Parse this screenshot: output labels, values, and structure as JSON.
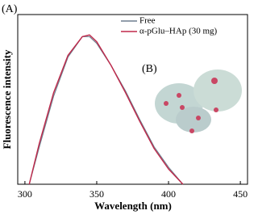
{
  "chart_data": {
    "type": "line",
    "annotations": [
      "(A)",
      "(B)"
    ],
    "x_label": "Wavelength (nm)",
    "y_label": "Fluorescence intensity",
    "x": [
      303,
      310,
      320,
      330,
      340,
      345,
      350,
      360,
      370,
      380,
      390,
      400,
      410
    ],
    "series": [
      {
        "name": "Free",
        "color": "#6f7f8f",
        "values": [
          0,
          22,
          52,
          75,
          87,
          87,
          83,
          70,
          55,
          38,
          22,
          10,
          0
        ]
      },
      {
        "name": "α-pGlu–HAp (30 mg)",
        "color": "#c0284a",
        "values": [
          0,
          24,
          54,
          76,
          87,
          88,
          84,
          70,
          54,
          37,
          21,
          9,
          0
        ]
      }
    ],
    "xlim": [
      295,
      455
    ],
    "ylim": [
      0,
      100
    ],
    "xticks": [
      300,
      350,
      400,
      450
    ],
    "legend": "top-right"
  }
}
